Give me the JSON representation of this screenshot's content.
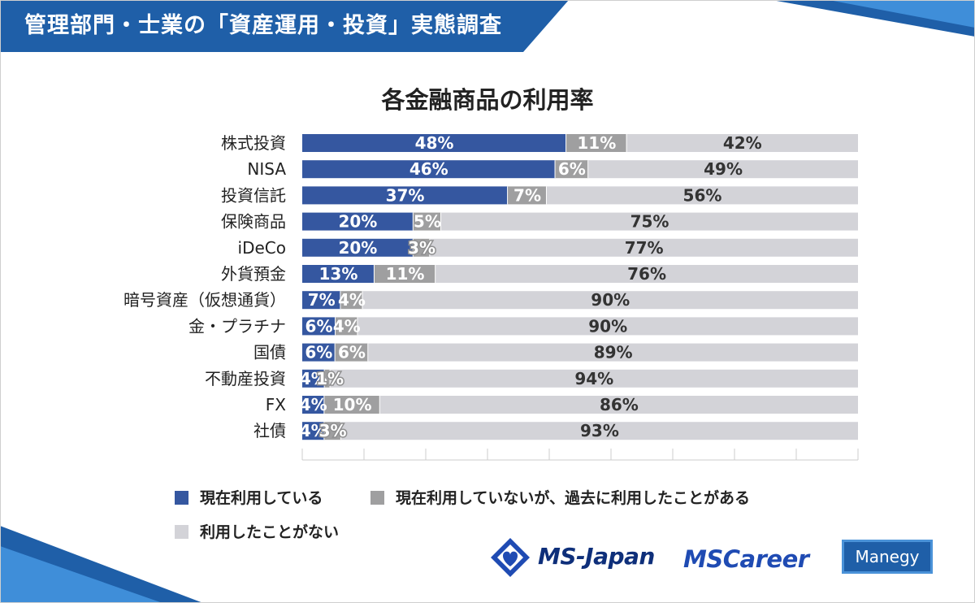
{
  "header": {
    "title": "管理部門・士業の「資産運用・投資」実態調査"
  },
  "colors": {
    "current": "#3557a0",
    "past": "#9f9fa0",
    "never": "#d3d3d8",
    "brand": "#1f5fa8"
  },
  "chart_data": {
    "type": "bar",
    "orientation": "horizontal",
    "stacked": true,
    "title": "各金融商品の利用率",
    "categories": [
      "株式投資",
      "NISA",
      "投資信託",
      "保険商品",
      "iDeCo",
      "外貨預金",
      "暗号資産（仮想通貨）",
      "金・プラチナ",
      "国債",
      "不動産投資",
      "FX",
      "社債"
    ],
    "series": [
      {
        "name": "現在利用している",
        "values": [
          48,
          46,
          37,
          20,
          20,
          13,
          7,
          6,
          6,
          4,
          4,
          4
        ]
      },
      {
        "name": "現在利用していないが、過去に利用したことがある",
        "values": [
          11,
          6,
          7,
          5,
          3,
          11,
          4,
          4,
          6,
          1,
          10,
          3
        ]
      },
      {
        "name": "利用したことがない",
        "values": [
          42,
          49,
          56,
          75,
          77,
          76,
          90,
          90,
          89,
          94,
          86,
          93
        ]
      }
    ],
    "xlim": [
      0,
      100
    ],
    "legend_position": "bottom"
  },
  "logos": {
    "msjapan": "MS-Japan",
    "mscareer": "MSCareer",
    "manegy": "Manegy"
  }
}
